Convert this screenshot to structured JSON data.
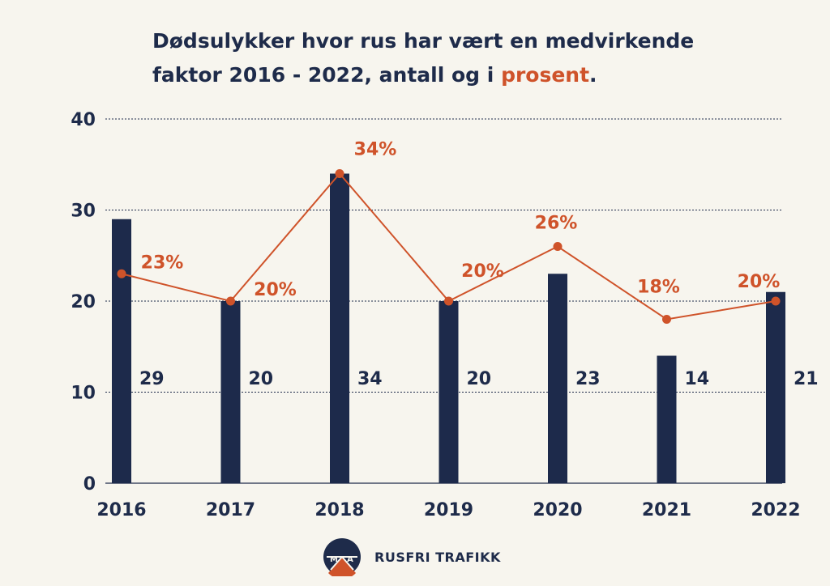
{
  "title": {
    "line1": "Dødsulykker hvor rus har vært en medvirkende",
    "line2_pre": "faktor 2016 - 2022, antall og i ",
    "line2_accent": "prosent",
    "line2_post": "."
  },
  "colors": {
    "background": "#f7f5ee",
    "bar": "#1d2a4b",
    "line": "#cf532a",
    "text": "#1e2b4a",
    "accent": "#cf532a"
  },
  "chart_data": {
    "type": "bar",
    "categories": [
      "2016",
      "2017",
      "2018",
      "2019",
      "2020",
      "2021",
      "2022"
    ],
    "series": [
      {
        "type": "bar",
        "values": [
          29,
          20,
          34,
          20,
          23,
          14,
          21
        ],
        "labels": [
          "29",
          "20",
          "34",
          "20",
          "23",
          "14",
          "21"
        ]
      },
      {
        "type": "line",
        "values": [
          23,
          20,
          34,
          20,
          26,
          18,
          20
        ],
        "labels": [
          "23%",
          "20%",
          "34%",
          "20%",
          "26%",
          "18%",
          "20%"
        ]
      }
    ],
    "ylim": [
      0,
      40
    ],
    "yticks": [
      "0",
      "10",
      "20",
      "30",
      "40"
    ],
    "grid": true,
    "xlabel": "",
    "ylabel": ""
  },
  "footer": {
    "logo_letters": [
      "M",
      "A"
    ],
    "brand": "RUSFRI TRAFIKK"
  }
}
